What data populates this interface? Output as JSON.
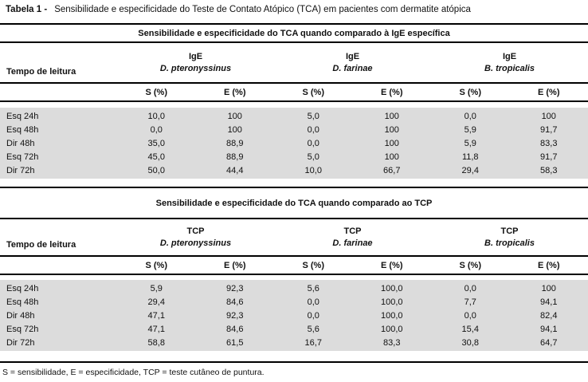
{
  "caption": {
    "label": "Tabela 1 -",
    "text": "Sensibilidade e especificidade do Teste de Contato Atópico (TCA) em pacientes com dermatite atópica"
  },
  "footnote": "S = sensibilidade, E = especificidade, TCP = teste cutâneo de puntura.",
  "colors": {
    "row_band_gray": "#dcdcdc",
    "rule_black": "#000000"
  },
  "tables": [
    {
      "band": "Sensibilidade e especificidade do TCA quando comparado à IgE específica",
      "row_header": "Tempo de leitura",
      "groups": [
        {
          "line1": "IgE",
          "line2": "D. pteronyssinus"
        },
        {
          "line1": "IgE",
          "line2": "D. farinae"
        },
        {
          "line1": "IgE",
          "line2": "B. tropicalis"
        }
      ],
      "subheaders": [
        "S (%)",
        "E (%)",
        "S (%)",
        "E (%)",
        "S (%)",
        "E (%)"
      ],
      "rows": [
        {
          "label": "Esq 24h",
          "values": [
            "10,0",
            "100",
            "5,0",
            "100",
            "0,0",
            "100"
          ]
        },
        {
          "label": "Esq 48h",
          "values": [
            "0,0",
            "100",
            "0,0",
            "100",
            "5,9",
            "91,7"
          ]
        },
        {
          "label": "Dir 48h",
          "values": [
            "35,0",
            "88,9",
            "0,0",
            "100",
            "5,9",
            "83,3"
          ]
        },
        {
          "label": "Esq 72h",
          "values": [
            "45,0",
            "88,9",
            "5,0",
            "100",
            "11,8",
            "91,7"
          ]
        },
        {
          "label": "Dir 72h",
          "values": [
            "50,0",
            "44,4",
            "10,0",
            "66,7",
            "29,4",
            "58,3"
          ]
        }
      ]
    },
    {
      "band": "Sensibilidade e especificidade do TCA quando comparado ao TCP",
      "row_header": "Tempo de leitura",
      "groups": [
        {
          "line1": "TCP",
          "line2": "D. pteronyssinus"
        },
        {
          "line1": "TCP",
          "line2": "D. farinae"
        },
        {
          "line1": "TCP",
          "line2": "B. tropicalis"
        }
      ],
      "subheaders": [
        "S (%)",
        "E (%)",
        "S (%)",
        "E (%)",
        "S (%)",
        "E (%)"
      ],
      "rows": [
        {
          "label": "Esq 24h",
          "values": [
            "5,9",
            "92,3",
            "5,6",
            "100,0",
            "0,0",
            "100"
          ]
        },
        {
          "label": "Esq 48h",
          "values": [
            "29,4",
            "84,6",
            "0,0",
            "100,0",
            "7,7",
            "94,1"
          ]
        },
        {
          "label": "Dir 48h",
          "values": [
            "47,1",
            "92,3",
            "0,0",
            "100,0",
            "0,0",
            "82,4"
          ]
        },
        {
          "label": "Esq 72h",
          "values": [
            "47,1",
            "84,6",
            "5,6",
            "100,0",
            "15,4",
            "94,1"
          ]
        },
        {
          "label": "Dir 72h",
          "values": [
            "58,8",
            "61,5",
            "16,7",
            "83,3",
            "30,8",
            "64,7"
          ]
        }
      ]
    }
  ]
}
